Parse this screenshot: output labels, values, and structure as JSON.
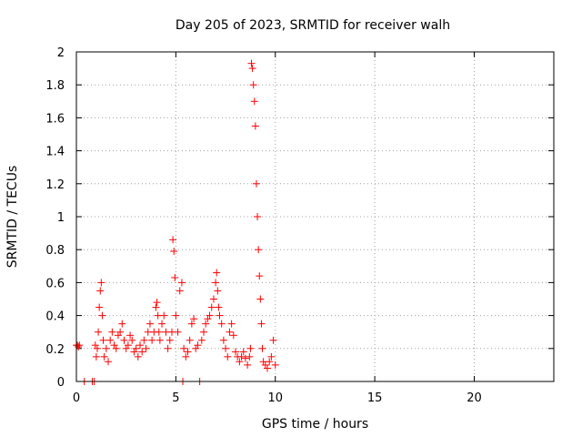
{
  "colors": {
    "series": "#ff0000",
    "axis": "#000000",
    "grid": "#a0a0a0",
    "background": "#ffffff"
  },
  "chart_data": {
    "type": "scatter",
    "title": "Day 205 of 2023, SRMTID for receiver walh",
    "xlabel": "GPS time / hours",
    "ylabel": "SRMTID / TECUs",
    "xlim": [
      0,
      24
    ],
    "ylim": [
      0,
      2
    ],
    "xticks": [
      0,
      5,
      10,
      15,
      20
    ],
    "yticks": [
      0,
      0.2,
      0.4,
      0.6,
      0.8,
      1,
      1.2,
      1.4,
      1.6,
      1.8,
      2
    ],
    "ytick_labels": [
      "0",
      "0.2",
      "0.4",
      "0.6",
      "0.8",
      "1",
      "1.2",
      "1.4",
      "1.6",
      "1.8",
      "2"
    ],
    "grid": true,
    "marker": "+",
    "series": [
      {
        "name": "SRMTID",
        "x": [
          0.0,
          0.05,
          0.1,
          0.15,
          0.4,
          0.8,
          0.9,
          0.95,
          1.0,
          1.05,
          1.1,
          1.15,
          1.2,
          1.25,
          1.3,
          1.35,
          1.4,
          1.5,
          1.6,
          1.7,
          1.8,
          1.9,
          2.0,
          2.1,
          2.2,
          2.3,
          2.4,
          2.5,
          2.6,
          2.7,
          2.8,
          2.9,
          3.0,
          3.1,
          3.2,
          3.3,
          3.4,
          3.5,
          3.6,
          3.7,
          3.8,
          3.9,
          4.0,
          4.05,
          4.1,
          4.15,
          4.2,
          4.3,
          4.4,
          4.5,
          4.6,
          4.7,
          4.8,
          4.85,
          4.9,
          4.95,
          5.0,
          5.1,
          5.2,
          5.3,
          5.35,
          5.4,
          5.5,
          5.6,
          5.7,
          5.8,
          5.9,
          6.0,
          6.1,
          6.2,
          6.3,
          6.4,
          6.5,
          6.6,
          6.7,
          6.8,
          6.9,
          7.0,
          7.05,
          7.1,
          7.15,
          7.2,
          7.3,
          7.4,
          7.5,
          7.6,
          7.7,
          7.8,
          7.9,
          8.0,
          8.1,
          8.2,
          8.3,
          8.4,
          8.5,
          8.6,
          8.7,
          8.75,
          8.8,
          8.85,
          8.9,
          8.95,
          9.0,
          9.05,
          9.1,
          9.15,
          9.2,
          9.25,
          9.3,
          9.35,
          9.4,
          9.5,
          9.6,
          9.7,
          9.8,
          9.9,
          10.0
        ],
        "y": [
          0.22,
          0.22,
          0.21,
          0.22,
          0.0,
          0.0,
          0.0,
          0.22,
          0.15,
          0.2,
          0.3,
          0.45,
          0.55,
          0.6,
          0.4,
          0.25,
          0.15,
          0.2,
          0.12,
          0.25,
          0.3,
          0.22,
          0.2,
          0.28,
          0.3,
          0.35,
          0.25,
          0.2,
          0.22,
          0.28,
          0.25,
          0.18,
          0.2,
          0.15,
          0.22,
          0.18,
          0.25,
          0.2,
          0.3,
          0.35,
          0.25,
          0.3,
          0.45,
          0.48,
          0.4,
          0.3,
          0.25,
          0.35,
          0.4,
          0.3,
          0.2,
          0.25,
          0.3,
          0.86,
          0.79,
          0.63,
          0.4,
          0.3,
          0.55,
          0.6,
          0.0,
          0.2,
          0.15,
          0.18,
          0.25,
          0.35,
          0.38,
          0.2,
          0.22,
          0.0,
          0.25,
          0.3,
          0.35,
          0.38,
          0.4,
          0.45,
          0.5,
          0.6,
          0.66,
          0.55,
          0.45,
          0.4,
          0.35,
          0.25,
          0.2,
          0.15,
          0.3,
          0.35,
          0.28,
          0.18,
          0.15,
          0.12,
          0.15,
          0.18,
          0.14,
          0.1,
          0.15,
          0.2,
          1.93,
          1.9,
          1.8,
          1.7,
          1.55,
          1.2,
          1.0,
          0.8,
          0.64,
          0.5,
          0.35,
          0.2,
          0.12,
          0.1,
          0.08,
          0.12,
          0.15,
          0.25,
          0.1
        ]
      }
    ]
  }
}
